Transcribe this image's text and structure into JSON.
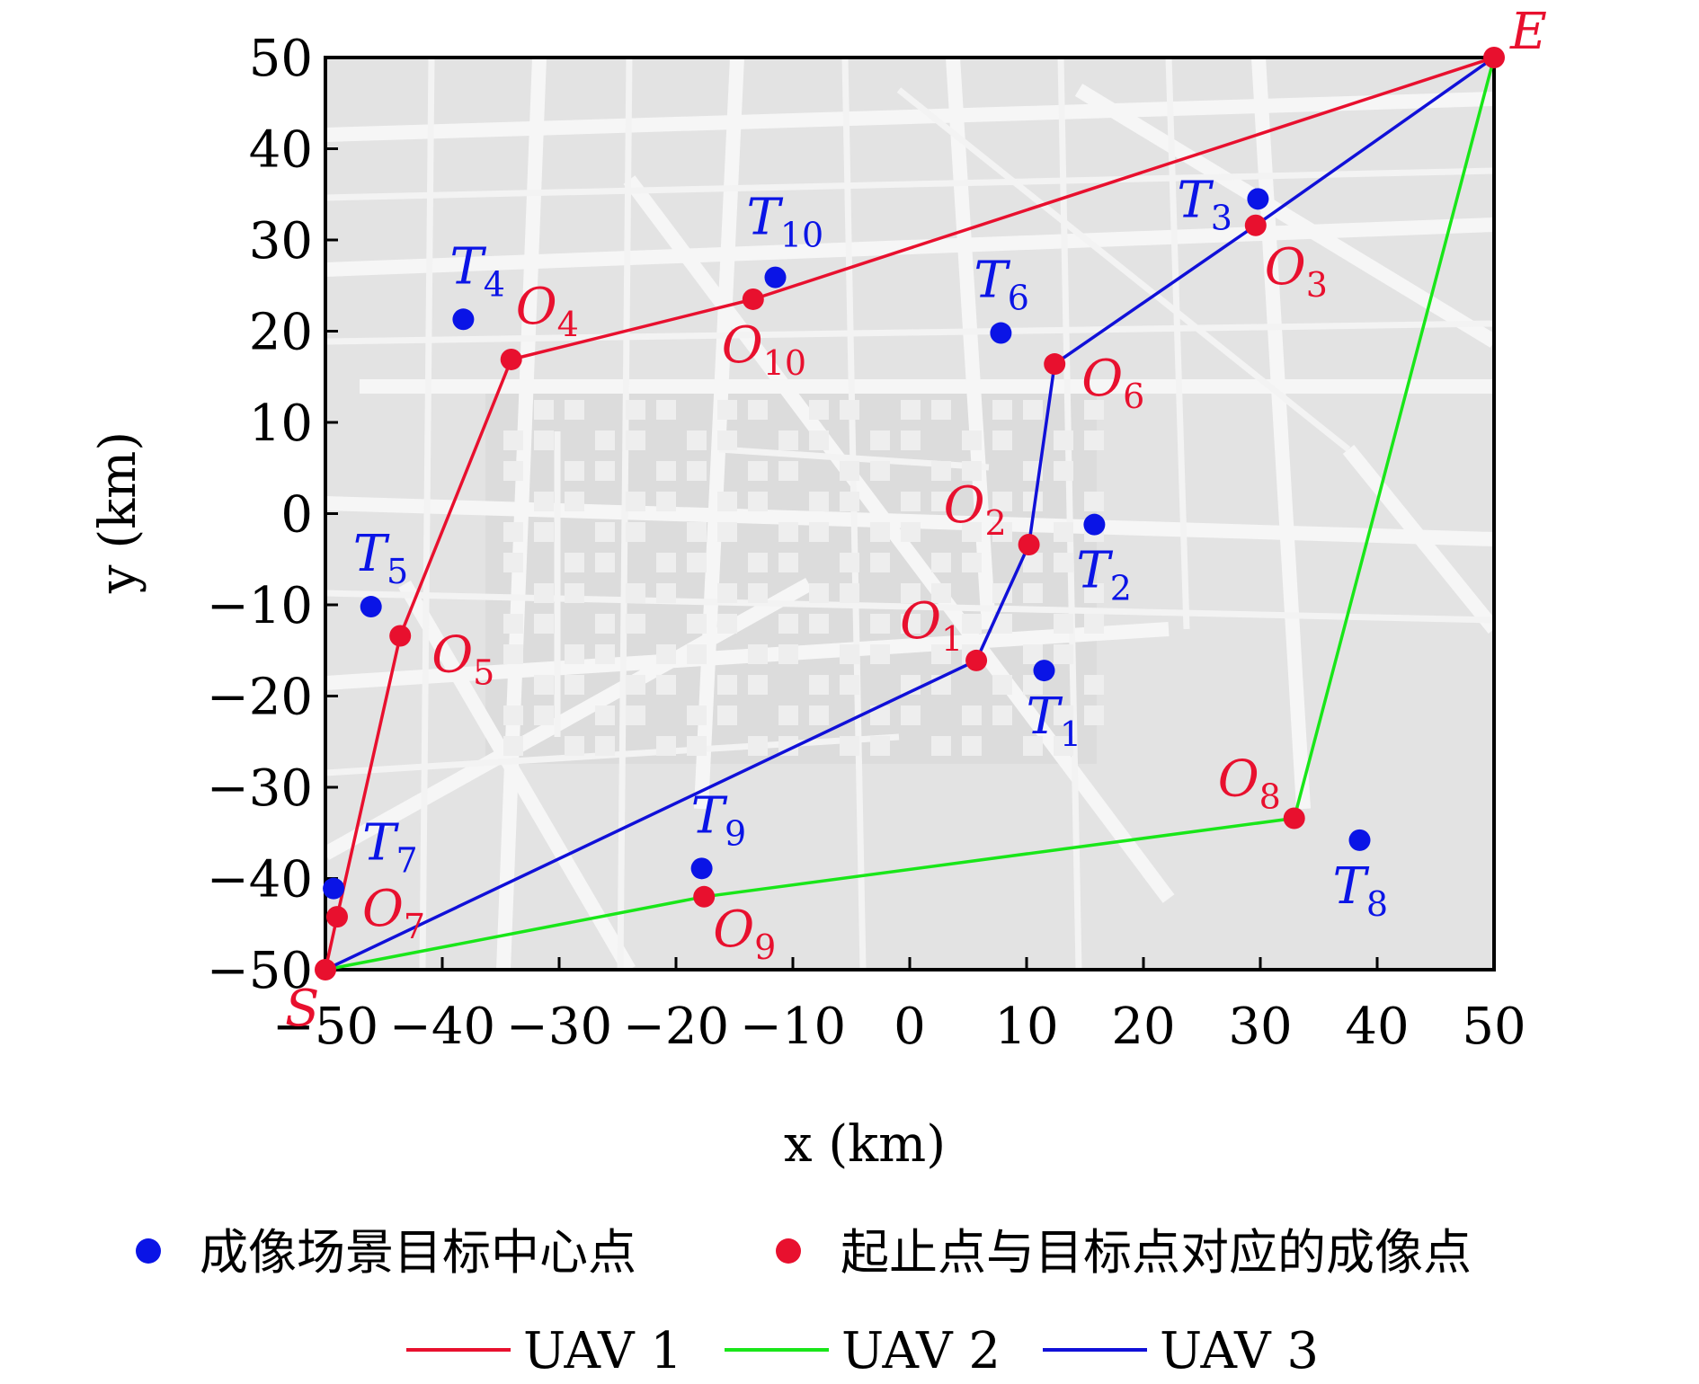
{
  "chart_data": {
    "type": "scatter",
    "xlabel": "x (km)",
    "ylabel": "y (km)",
    "xlim": [
      -50,
      50
    ],
    "ylim": [
      -50,
      50
    ],
    "xticks": [
      -50,
      -40,
      -30,
      -20,
      -10,
      0,
      10,
      20,
      30,
      40,
      50
    ],
    "yticks": [
      -50,
      -40,
      -30,
      -20,
      -10,
      0,
      10,
      20,
      30,
      40,
      50
    ],
    "xtick_labels": [
      "−50",
      "−40",
      "−30",
      "−20",
      "−10",
      "0",
      "10",
      "20",
      "30",
      "40",
      "50"
    ],
    "ytick_labels": [
      "−50",
      "−40",
      "−30",
      "−20",
      "−10",
      "0",
      "10",
      "20",
      "30",
      "40",
      "50"
    ],
    "start": {
      "label": "S",
      "x": -50,
      "y": -50
    },
    "end": {
      "label": "E",
      "x": 50,
      "y": 50
    },
    "targets": [
      {
        "name": "T",
        "sub": "1",
        "x": 11.5,
        "y": -17.2
      },
      {
        "name": "T",
        "sub": "2",
        "x": 15.8,
        "y": -1.2
      },
      {
        "name": "T",
        "sub": "3",
        "x": 29.8,
        "y": 34.5
      },
      {
        "name": "T",
        "sub": "4",
        "x": -38.2,
        "y": 21.3
      },
      {
        "name": "T",
        "sub": "5",
        "x": -46.1,
        "y": -10.2
      },
      {
        "name": "T",
        "sub": "6",
        "x": 7.8,
        "y": 19.8
      },
      {
        "name": "T",
        "sub": "7",
        "x": -49.3,
        "y": -41.1
      },
      {
        "name": "T",
        "sub": "8",
        "x": 38.5,
        "y": -35.8
      },
      {
        "name": "T",
        "sub": "9",
        "x": -17.8,
        "y": -38.9
      },
      {
        "name": "T",
        "sub": "10",
        "x": -11.5,
        "y": 25.9
      }
    ],
    "imaging_points": [
      {
        "name": "O",
        "sub": "1",
        "x": 5.7,
        "y": -16.1
      },
      {
        "name": "O",
        "sub": "2",
        "x": 10.2,
        "y": -3.4
      },
      {
        "name": "O",
        "sub": "3",
        "x": 29.6,
        "y": 31.6
      },
      {
        "name": "O",
        "sub": "4",
        "x": -34.1,
        "y": 16.9
      },
      {
        "name": "O",
        "sub": "5",
        "x": -43.6,
        "y": -13.4
      },
      {
        "name": "O",
        "sub": "6",
        "x": 12.4,
        "y": 16.4
      },
      {
        "name": "O",
        "sub": "7",
        "x": -49.0,
        "y": -44.2
      },
      {
        "name": "O",
        "sub": "8",
        "x": 32.9,
        "y": -33.4
      },
      {
        "name": "O",
        "sub": "9",
        "x": -17.6,
        "y": -42.0
      },
      {
        "name": "O",
        "sub": "10",
        "x": -13.4,
        "y": 23.5
      }
    ],
    "routes": [
      {
        "name": "UAV 1",
        "color": "#e8102e",
        "points": [
          [
            -50,
            -50
          ],
          [
            -49.0,
            -44.2
          ],
          [
            -43.6,
            -13.4
          ],
          [
            -34.1,
            16.9
          ],
          [
            -13.4,
            23.5
          ],
          [
            50,
            50
          ]
        ]
      },
      {
        "name": "UAV 2",
        "color": "#19e619",
        "points": [
          [
            -50,
            -50
          ],
          [
            -17.6,
            -42.0
          ],
          [
            32.9,
            -33.4
          ],
          [
            50,
            50
          ]
        ]
      },
      {
        "name": "UAV 3",
        "color": "#1010d8",
        "points": [
          [
            -50,
            -50
          ],
          [
            5.7,
            -16.1
          ],
          [
            10.2,
            -3.4
          ],
          [
            12.4,
            16.4
          ],
          [
            29.6,
            31.6
          ],
          [
            50,
            50
          ]
        ]
      }
    ],
    "target_color": "#0a14e6",
    "imaging_color": "#e8102e",
    "legend": {
      "placement": "bottom",
      "markers": [
        {
          "label": "成像场景目标中心点",
          "color": "#0a14e6"
        },
        {
          "label": "起止点与目标点对应的成像点",
          "color": "#e8102e"
        }
      ],
      "lines": [
        {
          "label": "UAV 1",
          "color": "#e8102e"
        },
        {
          "label": "UAV 2",
          "color": "#19e619"
        },
        {
          "label": "UAV 3",
          "color": "#1010d8"
        }
      ]
    },
    "background": "gray street map"
  }
}
